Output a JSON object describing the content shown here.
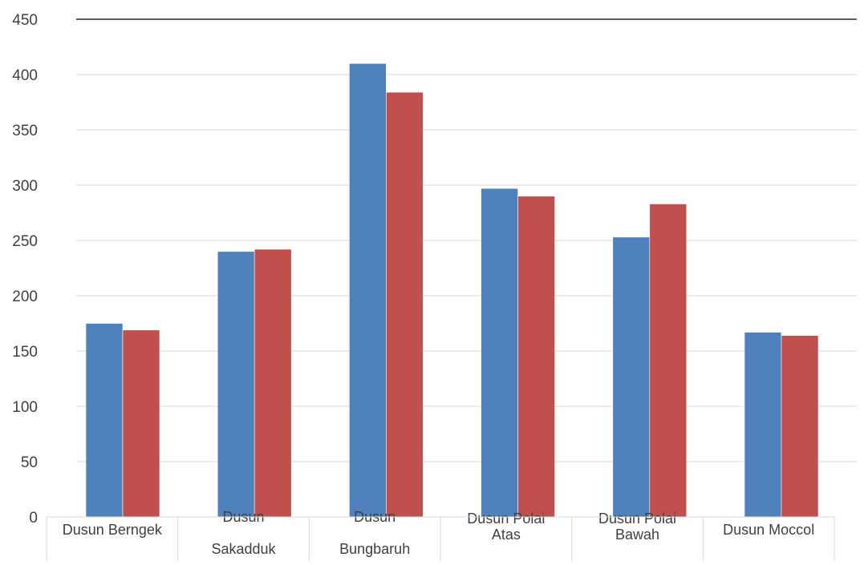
{
  "chart_data": {
    "type": "bar",
    "categories": [
      [
        "Dusun  Berngek"
      ],
      [
        "Dusun",
        "",
        "Sakadduk"
      ],
      [
        "Dusun",
        "",
        "Bungbaruh"
      ],
      [
        "Dusun Polai",
        "Atas"
      ],
      [
        "Dusun Polai",
        "Bawah"
      ],
      [
        "Dusun  Moccol"
      ]
    ],
    "series": [
      {
        "values": [
          175,
          240,
          410,
          297,
          253,
          167
        ],
        "color": "#4f81bd"
      },
      {
        "values": [
          169,
          242,
          384,
          290,
          283,
          164
        ],
        "color": "#c0504d"
      }
    ],
    "ylim": [
      0,
      450
    ],
    "yticks": [
      "0",
      "50",
      "100",
      "150",
      "200",
      "250",
      "300",
      "350",
      "400",
      "450"
    ],
    "title": "",
    "xlabel": "",
    "ylabel": "",
    "grid": true,
    "legend": "none"
  }
}
